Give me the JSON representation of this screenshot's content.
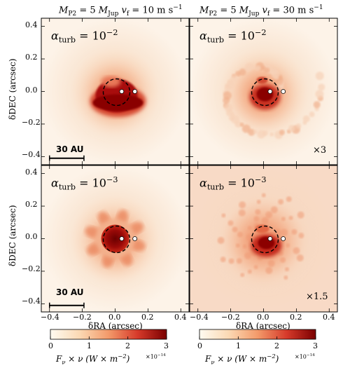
{
  "figure": {
    "columns": [
      {
        "title_main": "M",
        "title_sub": "P2",
        "title_eq": " = 5 ",
        "title_mass": "M",
        "title_mass_sub": "Jup",
        "title_v": " v",
        "title_v_sub": "f",
        "title_val": " = 10 m s",
        "title_val_sup": "−1"
      },
      {
        "title_main": "M",
        "title_sub": "P2",
        "title_eq": " = 5 ",
        "title_mass": "M",
        "title_mass_sub": "Jup",
        "title_v": " v",
        "title_v_sub": "f",
        "title_val": " = 30 m s",
        "title_val_sup": "−1"
      }
    ],
    "panels": [
      {
        "label_sym": "α",
        "label_sub": "turb",
        "label_eq": " = 10",
        "label_sup": "−2",
        "multiplier": "",
        "scale_bar": "30 AU",
        "intensity": 1.0,
        "variant": "disk-ring"
      },
      {
        "label_sym": "α",
        "label_sub": "turb",
        "label_eq": " = 10",
        "label_sup": "−2",
        "multiplier": "×3",
        "scale_bar": "",
        "intensity": 0.9,
        "variant": "speckle"
      },
      {
        "label_sym": "α",
        "label_sub": "turb",
        "label_eq": " = 10",
        "label_sup": "−3",
        "multiplier": "",
        "scale_bar": "30 AU",
        "intensity": 1.0,
        "variant": "flower"
      },
      {
        "label_sym": "α",
        "label_sub": "turb",
        "label_eq": " = 10",
        "label_sup": "−3",
        "multiplier": "×1.5",
        "scale_bar": "",
        "intensity": 0.85,
        "variant": "diffuse"
      }
    ],
    "axes": {
      "xlabel": "δRA (arcsec)",
      "ylabel": "δDEC (arcsec)",
      "xticks": [
        "−0.4",
        "−0.2",
        "0.0",
        "0.2",
        "0.4"
      ],
      "yticks": [
        "0.4",
        "0.2",
        "0.0",
        "−0.2",
        "−0.4"
      ],
      "xlim": [
        -0.45,
        0.45
      ],
      "ylim": [
        -0.45,
        0.45
      ]
    },
    "colorbars": [
      {
        "ticks": [
          "0",
          "1",
          "2",
          "3"
        ],
        "label": "F",
        "label_sub": "ν",
        "label_rest": " × ν (W × m",
        "label_sup": "−2",
        "label_end": ")",
        "exponent": "×10",
        "exponent_sup": "−14",
        "range": [
          0,
          3
        ]
      },
      {
        "ticks": [
          "0",
          "1",
          "2",
          "3"
        ],
        "label": "F",
        "label_sub": "ν",
        "label_rest": " × ν (W × m",
        "label_sup": "−2",
        "label_end": ")",
        "exponent": "×10",
        "exponent_sup": "−14",
        "range": [
          0,
          3
        ]
      }
    ],
    "colors": {
      "background_low": "#fdf2e6",
      "mid": "#f0a070",
      "high": "#a81010",
      "max": "#6a0000",
      "planet": "#ffffff"
    }
  }
}
